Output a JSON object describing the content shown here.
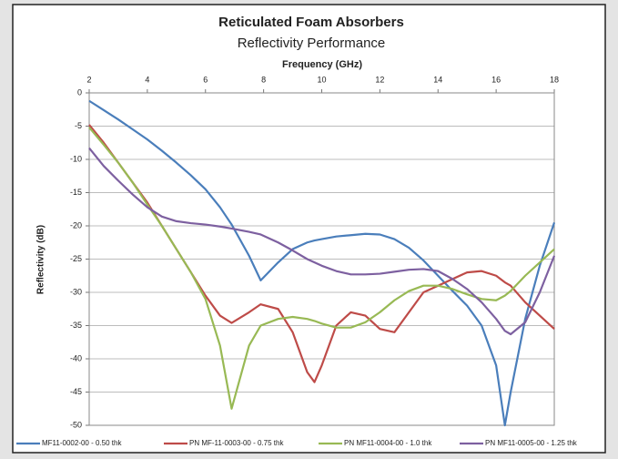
{
  "chart_data": {
    "type": "line",
    "title": "Reticulated Foam Absorbers",
    "subtitle": "Reflectivity Performance",
    "xlabel": "Frequency (GHz)",
    "ylabel": "Reflectivity (dB)",
    "x": [
      2,
      2.5,
      3,
      3.5,
      4,
      4.5,
      5,
      5.5,
      6,
      6.5,
      6.9,
      7.5,
      7.9,
      8.5,
      9,
      9.5,
      9.75,
      10,
      10.5,
      11,
      11.5,
      12,
      12.5,
      13,
      13.5,
      14,
      14.5,
      15,
      15.5,
      16,
      16.3,
      16.5,
      17,
      17.5,
      18
    ],
    "xlim": [
      2,
      18
    ],
    "xticks": [
      2,
      4,
      6,
      8,
      10,
      12,
      14,
      16,
      18
    ],
    "ylim": [
      -50,
      0
    ],
    "yticks": [
      0,
      -5,
      -10,
      -15,
      -20,
      -25,
      -30,
      -35,
      -40,
      -45,
      -50
    ],
    "grid": true,
    "legend": "bottom",
    "series": [
      {
        "name": "MF11-0002-00 - 0.50 thk",
        "color": "#4a7ebb",
        "values": [
          -1.2,
          -2.6,
          -4,
          -5.5,
          -7,
          -8.7,
          -10.5,
          -12.4,
          -14.5,
          -17.2,
          -19.8,
          -24.5,
          -28.2,
          -25.5,
          -23.5,
          -22.5,
          -22.2,
          -22,
          -21.6,
          -21.4,
          -21.2,
          -21.3,
          -22,
          -23.3,
          -25.2,
          -27.5,
          -29.8,
          -32,
          -35,
          -41,
          -50,
          -45,
          -34,
          -26,
          -19.5
        ]
      },
      {
        "name": "PN MF-11-0003-00 - 0.75 thk",
        "color": "#be4b48",
        "values": [
          -4.8,
          -7.5,
          -10.5,
          -13.5,
          -16.5,
          -20,
          -23.5,
          -27,
          -30.5,
          -33.5,
          -34.6,
          -33,
          -31.8,
          -32.5,
          -36,
          -42,
          -43.5,
          -41,
          -35,
          -33,
          -33.5,
          -35.5,
          -36,
          -33,
          -30,
          -29,
          -28,
          -27,
          -26.8,
          -27.5,
          -28.5,
          -29,
          -31.5,
          -33.5,
          -35.5
        ]
      },
      {
        "name": "PN MF11-0004-00 - 1.0 thk",
        "color": "#98b954",
        "values": [
          -5.2,
          -7.8,
          -10.5,
          -13.5,
          -16.8,
          -20,
          -23.5,
          -27,
          -31,
          -38,
          -47.5,
          -38,
          -35,
          -34,
          -33.7,
          -34,
          -34.3,
          -34.7,
          -35.3,
          -35.3,
          -34.5,
          -33,
          -31.2,
          -29.8,
          -29,
          -29,
          -29.5,
          -30.3,
          -31,
          -31.2,
          -30.5,
          -29.8,
          -27.5,
          -25.5,
          -23.5
        ]
      },
      {
        "name": "PN MF11-0005-00 - 1.25 thk",
        "color": "#7d60a0",
        "values": [
          -8.3,
          -11,
          -13.2,
          -15.3,
          -17.2,
          -18.6,
          -19.3,
          -19.6,
          -19.8,
          -20.1,
          -20.4,
          -20.9,
          -21.3,
          -22.5,
          -23.7,
          -25,
          -25.5,
          -26,
          -26.8,
          -27.3,
          -27.3,
          -27.2,
          -26.9,
          -26.6,
          -26.5,
          -26.8,
          -28,
          -29.5,
          -31.5,
          -34,
          -35.8,
          -36.3,
          -34.5,
          -30,
          -24.5
        ]
      }
    ]
  }
}
